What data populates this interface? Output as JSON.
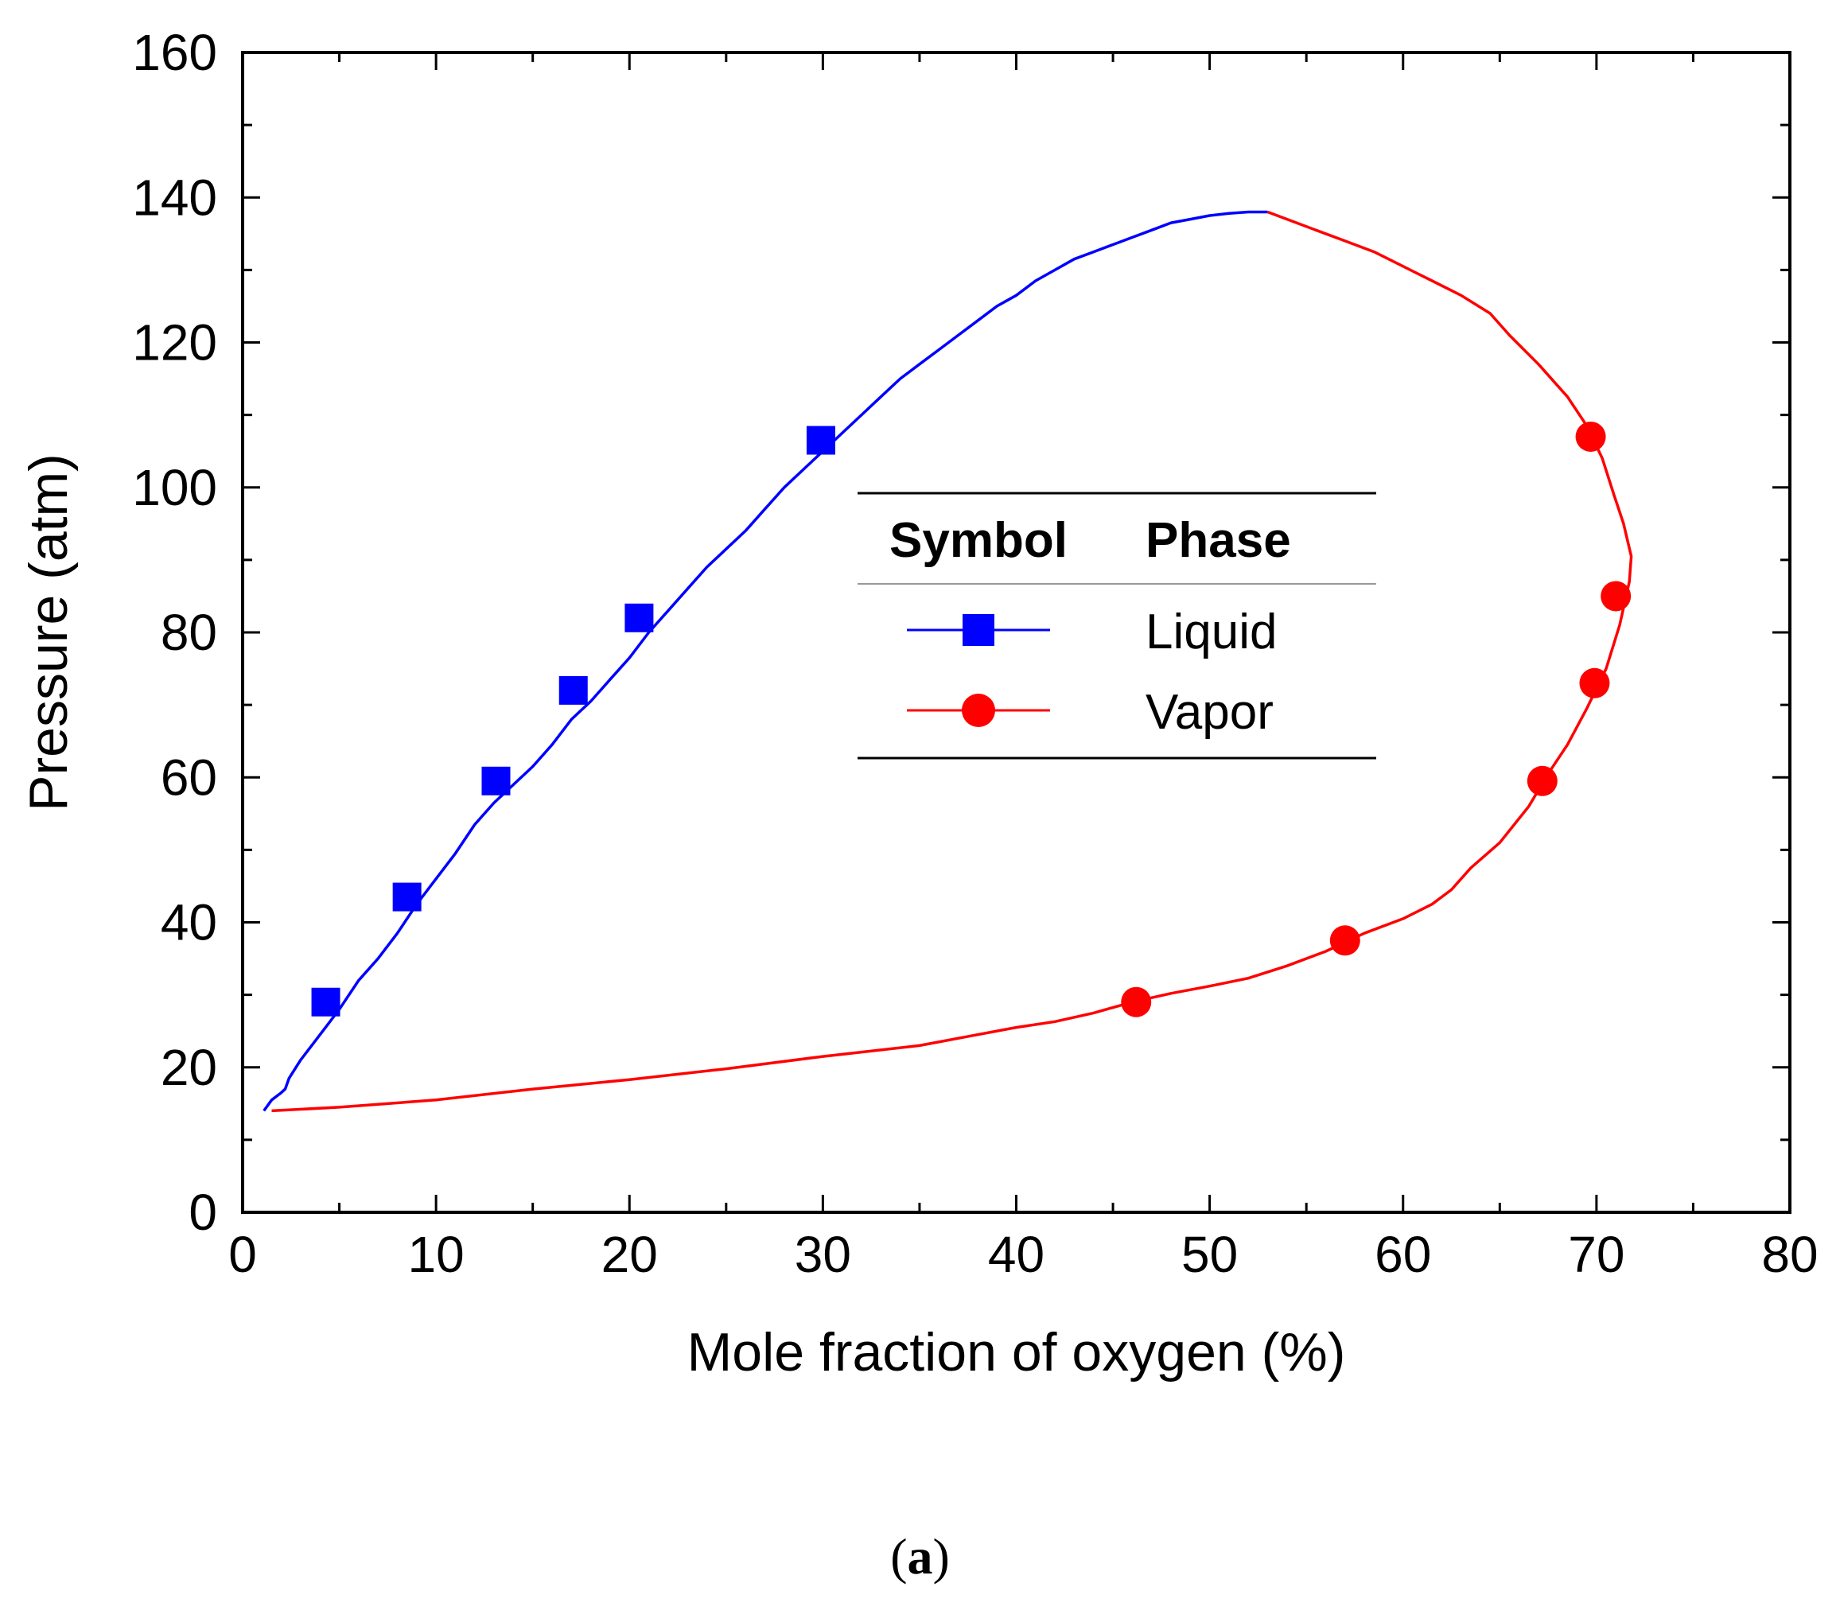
{
  "figure": {
    "panel_label_open": "(",
    "panel_label_letter": "a",
    "panel_label_close": ")"
  },
  "colors": {
    "liquid": "#0000ff",
    "vapor": "#ff0000",
    "axis": "#000000"
  },
  "chart_data": {
    "type": "line",
    "title": "",
    "xlabel": "Mole fraction of oxygen (%)",
    "ylabel": "Pressure (atm)",
    "xlim": [
      0,
      80
    ],
    "ylim": [
      0,
      160
    ],
    "x_ticks": [
      0,
      10,
      20,
      30,
      40,
      50,
      60,
      70,
      80
    ],
    "y_ticks": [
      0,
      20,
      40,
      60,
      80,
      100,
      120,
      140,
      160
    ],
    "x_tick_labels": [
      "0",
      "10",
      "20",
      "30",
      "40",
      "50",
      "60",
      "70",
      "80"
    ],
    "y_tick_labels": [
      "0",
      "20",
      "40",
      "60",
      "80",
      "100",
      "120",
      "140",
      "160"
    ],
    "legend": {
      "position": "center-right",
      "header_symbol": "Symbol",
      "header_phase": "Phase",
      "entries": [
        "Liquid",
        "Vapor"
      ]
    },
    "series": [
      {
        "name": "Liquid",
        "color": "#0000ff",
        "marker": "square",
        "points": [
          [
            4.3,
            29
          ],
          [
            8.5,
            43.5
          ],
          [
            13.1,
            59.5
          ],
          [
            17.1,
            72
          ],
          [
            20.5,
            82
          ],
          [
            29.9,
            106.5
          ]
        ],
        "curve": [
          [
            1.1,
            14
          ],
          [
            1.5,
            15.5
          ],
          [
            2.0,
            16.5
          ],
          [
            2.2,
            17
          ],
          [
            2.4,
            18.5
          ],
          [
            3.0,
            21
          ],
          [
            4.0,
            24.5
          ],
          [
            5.0,
            28
          ],
          [
            6.0,
            32
          ],
          [
            7.0,
            35
          ],
          [
            8.0,
            38.5
          ],
          [
            9.0,
            42.5
          ],
          [
            10.0,
            46
          ],
          [
            11.0,
            49.5
          ],
          [
            12.0,
            53.5
          ],
          [
            13.0,
            56.5
          ],
          [
            14.0,
            59
          ],
          [
            15.0,
            61.5
          ],
          [
            16.0,
            64.5
          ],
          [
            17.0,
            68
          ],
          [
            18.0,
            70.5
          ],
          [
            19.0,
            73.5
          ],
          [
            20.0,
            76.5
          ],
          [
            21.0,
            80
          ],
          [
            22.0,
            83
          ],
          [
            23.0,
            86
          ],
          [
            24.0,
            89
          ],
          [
            25.0,
            91.5
          ],
          [
            26.0,
            94
          ],
          [
            27.0,
            97
          ],
          [
            28.0,
            100
          ],
          [
            29.0,
            102.5
          ],
          [
            30.0,
            105
          ],
          [
            31.0,
            107.5
          ],
          [
            32.0,
            110
          ],
          [
            33.0,
            112.5
          ],
          [
            34.0,
            115
          ],
          [
            35.0,
            117
          ],
          [
            36.0,
            119
          ],
          [
            37.0,
            121
          ],
          [
            38.0,
            123
          ],
          [
            39.0,
            125
          ],
          [
            40.0,
            126.5
          ],
          [
            41.0,
            128.5
          ],
          [
            42.0,
            130
          ],
          [
            43.0,
            131.5
          ],
          [
            44.0,
            132.5
          ],
          [
            45.0,
            133.5
          ],
          [
            46.0,
            134.5
          ],
          [
            47.0,
            135.5
          ],
          [
            48.0,
            136.5
          ],
          [
            49.0,
            137
          ],
          [
            50.0,
            137.5
          ],
          [
            51.0,
            137.8
          ],
          [
            52.0,
            138
          ],
          [
            53.0,
            138
          ]
        ]
      },
      {
        "name": "Vapor",
        "color": "#ff0000",
        "marker": "circle",
        "points": [
          [
            46.2,
            29
          ],
          [
            57.0,
            37.5
          ],
          [
            67.2,
            59.5
          ],
          [
            69.9,
            73
          ],
          [
            71.0,
            85
          ],
          [
            69.7,
            107
          ]
        ],
        "curve": [
          [
            1.5,
            14
          ],
          [
            5.0,
            14.5
          ],
          [
            10.0,
            15.5
          ],
          [
            15.0,
            17
          ],
          [
            20.0,
            18.3
          ],
          [
            25.0,
            19.8
          ],
          [
            30.0,
            21.5
          ],
          [
            35.0,
            23
          ],
          [
            38.0,
            24.5
          ],
          [
            40.0,
            25.5
          ],
          [
            42.0,
            26.3
          ],
          [
            44.0,
            27.5
          ],
          [
            46.0,
            29
          ],
          [
            48.0,
            30.2
          ],
          [
            50.0,
            31.2
          ],
          [
            52.0,
            32.3
          ],
          [
            54.0,
            34
          ],
          [
            56.0,
            36
          ],
          [
            58.0,
            38.5
          ],
          [
            60.0,
            40.5
          ],
          [
            61.5,
            42.5
          ],
          [
            62.5,
            44.5
          ],
          [
            63.5,
            47.5
          ],
          [
            65.0,
            51
          ],
          [
            66.5,
            56
          ],
          [
            67.5,
            60.5
          ],
          [
            68.5,
            64.5
          ],
          [
            69.5,
            69.5
          ],
          [
            70.5,
            75
          ],
          [
            71.2,
            81
          ],
          [
            71.7,
            87
          ],
          [
            71.8,
            90.5
          ],
          [
            71.4,
            95
          ],
          [
            70.9,
            99
          ],
          [
            70.3,
            104
          ],
          [
            69.5,
            108.5
          ],
          [
            68.5,
            112.5
          ],
          [
            67.0,
            117
          ],
          [
            65.5,
            121
          ],
          [
            64.5,
            124
          ],
          [
            63.0,
            126.5
          ],
          [
            61.5,
            128.5
          ],
          [
            60.0,
            130.5
          ],
          [
            58.5,
            132.5
          ],
          [
            57.0,
            134
          ],
          [
            55.5,
            135.5
          ],
          [
            54.0,
            137
          ],
          [
            53.0,
            138
          ]
        ]
      }
    ]
  }
}
